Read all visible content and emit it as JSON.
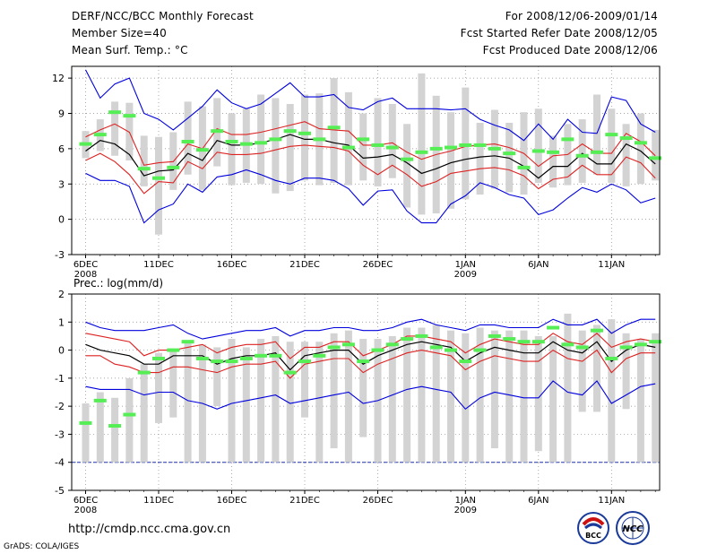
{
  "header": {
    "title": "DERF/NCC/BCC Monthly Forecast",
    "member": "Member Size=40",
    "variable": "Mean Surf. Temp.: °C",
    "period": "For 2008/12/06-2009/01/14",
    "started": "Fcst Started Refer Date 2008/12/05",
    "produced": "Fcst Produced Date 2008/12/06"
  },
  "footer": {
    "url": "http://cmdp.ncc.cma.gov.cn",
    "credit": "GrADS: COLA/IGES",
    "logo1_text": "BCC",
    "logo2_text": "NCC"
  },
  "colors": {
    "box": "#d3d3d3",
    "mark": "#55ee55",
    "mean": "#000000",
    "inner": "#dd2222",
    "outer": "#0000dd",
    "grid": "#888888"
  },
  "chart_data": [
    {
      "type": "box-ensemble",
      "title": "Mean Surf. Temp.: °C",
      "ylim": [
        -3,
        13
      ],
      "yticks": [
        -3,
        0,
        3,
        6,
        9,
        12
      ],
      "xticks": [
        {
          "i": 0,
          "label": "6DEC",
          "sub": "2008"
        },
        {
          "i": 5,
          "label": "11DEC"
        },
        {
          "i": 10,
          "label": "16DEC"
        },
        {
          "i": 15,
          "label": "21DEC"
        },
        {
          "i": 20,
          "label": "26DEC"
        },
        {
          "i": 26,
          "label": "1JAN",
          "sub": "2009"
        },
        {
          "i": 31,
          "label": "6JAN"
        },
        {
          "i": 36,
          "label": "11JAN"
        }
      ],
      "box_low": [
        5.2,
        5.8,
        5.4,
        5.0,
        2.8,
        -1.3,
        2.5,
        3.8,
        2.5,
        4.5,
        2.9,
        3.1,
        3.0,
        2.2,
        2.4,
        3.3,
        2.9,
        3.1,
        2.9,
        3.3,
        2.8,
        3.5,
        1.0,
        0.4,
        0.5,
        0.9,
        1.7,
        2.1,
        2.6,
        2.3,
        2.1,
        3.1,
        2.7,
        2.9,
        3.1,
        3.8,
        3.1,
        2.8,
        3.0,
        3.3
      ],
      "box_high": [
        7.5,
        8.5,
        10.0,
        9.9,
        7.1,
        7.0,
        7.4,
        10.0,
        9.6,
        10.3,
        9.0,
        9.4,
        10.6,
        10.3,
        9.8,
        10.6,
        10.7,
        12.0,
        10.8,
        9.0,
        10.3,
        9.8,
        8.1,
        12.4,
        10.5,
        9.1,
        11.2,
        8.2,
        9.3,
        8.2,
        9.1,
        9.4,
        7.1,
        8.1,
        8.5,
        10.6,
        9.4,
        8.1,
        9.0,
        7.6
      ],
      "green": [
        6.4,
        7.2,
        9.1,
        8.8,
        4.3,
        3.5,
        4.4,
        6.6,
        5.9,
        7.5,
        6.6,
        6.4,
        6.5,
        6.8,
        7.5,
        7.3,
        6.8,
        7.8,
        6.1,
        6.8,
        6.3,
        6.1,
        5.1,
        5.7,
        6.0,
        6.1,
        6.3,
        6.3,
        6.0,
        5.6,
        4.4,
        5.8,
        5.7,
        6.8,
        5.4,
        5.7,
        7.2,
        6.9,
        6.5,
        5.2
      ],
      "mean": [
        5.8,
        6.7,
        6.4,
        5.5,
        3.7,
        4.1,
        4.2,
        5.6,
        5.0,
        6.7,
        6.3,
        6.3,
        6.5,
        6.8,
        7.2,
        6.8,
        6.8,
        6.5,
        6.3,
        5.2,
        5.3,
        5.5,
        4.8,
        3.9,
        4.3,
        4.8,
        5.1,
        5.3,
        5.4,
        5.2,
        4.5,
        3.5,
        4.5,
        4.5,
        5.6,
        4.7,
        4.7,
        6.4,
        5.8,
        4.7
      ],
      "upper": [
        7.0,
        7.6,
        8.1,
        7.4,
        4.6,
        4.8,
        4.9,
        6.4,
        6.0,
        7.7,
        7.2,
        7.2,
        7.4,
        7.7,
        8.0,
        8.3,
        7.7,
        7.6,
        7.5,
        6.3,
        6.3,
        6.5,
        5.7,
        5.1,
        5.5,
        5.8,
        6.2,
        6.3,
        6.4,
        6.1,
        5.6,
        4.5,
        5.4,
        5.5,
        6.4,
        5.6,
        5.6,
        7.3,
        6.6,
        5.4
      ],
      "lower": [
        5.0,
        5.6,
        4.9,
        3.8,
        2.2,
        3.2,
        3.1,
        4.9,
        4.3,
        5.7,
        5.5,
        5.5,
        5.6,
        5.9,
        6.2,
        6.3,
        6.2,
        6.1,
        5.8,
        4.6,
        3.8,
        4.6,
        3.8,
        2.8,
        3.2,
        3.9,
        4.1,
        4.3,
        4.4,
        4.2,
        3.7,
        2.6,
        3.4,
        3.6,
        4.6,
        3.8,
        3.8,
        5.3,
        4.8,
        3.5
      ],
      "max": [
        12.7,
        10.3,
        11.5,
        12.0,
        9.0,
        8.5,
        7.6,
        8.6,
        9.6,
        11.0,
        9.9,
        9.4,
        9.8,
        10.7,
        11.6,
        10.4,
        10.4,
        10.6,
        9.5,
        9.3,
        10.0,
        10.3,
        9.4,
        9.4,
        9.4,
        9.3,
        9.4,
        8.5,
        8.0,
        7.6,
        6.7,
        8.1,
        6.8,
        8.5,
        7.4,
        7.3,
        10.4,
        10.1,
        8.1,
        7.4
      ],
      "min": [
        3.9,
        3.3,
        3.3,
        2.8,
        -0.3,
        0.8,
        1.3,
        3.0,
        2.3,
        3.6,
        3.8,
        4.2,
        3.8,
        3.3,
        3.0,
        3.5,
        3.5,
        3.3,
        2.6,
        1.2,
        2.4,
        2.5,
        0.7,
        -0.3,
        -0.3,
        1.3,
        2.0,
        3.1,
        2.7,
        2.1,
        1.8,
        0.4,
        0.8,
        1.8,
        2.7,
        2.3,
        3.0,
        2.5,
        1.4,
        1.8
      ]
    },
    {
      "type": "box-ensemble",
      "title": "Prec.: log(mm/d)",
      "ylim": [
        -5,
        2
      ],
      "yticks": [
        -5,
        -4,
        -3,
        -2,
        -1,
        0,
        1,
        2
      ],
      "xticks": [
        {
          "i": 0,
          "label": "6DEC",
          "sub": "2008"
        },
        {
          "i": 5,
          "label": "11DEC"
        },
        {
          "i": 10,
          "label": "16DEC"
        },
        {
          "i": 15,
          "label": "21DEC"
        },
        {
          "i": 20,
          "label": "26DEC"
        },
        {
          "i": 26,
          "label": "1JAN",
          "sub": "2009"
        },
        {
          "i": 31,
          "label": "6JAN"
        },
        {
          "i": 36,
          "label": "11JAN"
        }
      ],
      "floor": -4,
      "box_low": [
        -4,
        -4,
        -4,
        -4,
        -4,
        -2.6,
        -2.4,
        -4,
        -4,
        -2.0,
        -4,
        -4,
        -4,
        -4,
        -4,
        -2.4,
        -4,
        -3.5,
        -4,
        -3.1,
        -4,
        -4,
        -4,
        -4,
        -4,
        -4,
        -4,
        -4,
        -3.5,
        -4,
        -4,
        -3.6,
        -4,
        -4,
        -2.2,
        -2.2,
        -4,
        -2.1,
        -4,
        -4
      ],
      "box_high": [
        -1.9,
        -1.5,
        -1.7,
        -1.0,
        -0.5,
        -0.1,
        0.0,
        0.3,
        0.2,
        0.1,
        0.4,
        0.1,
        0.4,
        0.5,
        0.3,
        0.3,
        0.3,
        0.6,
        0.7,
        0.4,
        0.4,
        0.5,
        0.8,
        0.8,
        0.9,
        0.7,
        0.6,
        0.8,
        0.7,
        0.7,
        0.7,
        0.5,
        0.5,
        1.3,
        0.7,
        0.9,
        1.1,
        0.6,
        0.4,
        0.6
      ],
      "green": [
        -2.6,
        -1.8,
        -2.7,
        -2.3,
        -0.8,
        -0.3,
        0.0,
        0.3,
        -0.3,
        -0.4,
        -0.4,
        -0.3,
        -0.2,
        -0.2,
        -0.8,
        -0.4,
        -0.2,
        0.1,
        0.2,
        -0.4,
        0.0,
        0.2,
        0.4,
        0.5,
        0.1,
        0.0,
        -0.4,
        0.0,
        0.5,
        0.4,
        0.3,
        0.3,
        0.8,
        0.2,
        0.1,
        0.7,
        -0.3,
        0.1,
        0.2,
        0.3
      ],
      "mean": [
        0.2,
        0.0,
        -0.1,
        -0.2,
        -0.5,
        -0.5,
        -0.2,
        -0.2,
        -0.2,
        -0.5,
        -0.3,
        -0.2,
        -0.2,
        -0.1,
        -0.7,
        -0.2,
        -0.1,
        0.0,
        0.0,
        -0.5,
        -0.2,
        0.0,
        0.2,
        0.3,
        0.2,
        0.1,
        -0.4,
        -0.1,
        0.1,
        0.0,
        -0.1,
        -0.1,
        0.3,
        0.0,
        -0.1,
        0.3,
        -0.4,
        0.0,
        0.2,
        0.1
      ],
      "upper": [
        0.6,
        0.5,
        0.4,
        0.3,
        -0.2,
        0.0,
        0.0,
        0.1,
        0.2,
        -0.1,
        0.1,
        0.2,
        0.2,
        0.3,
        -0.3,
        0.1,
        0.1,
        0.3,
        0.3,
        -0.2,
        0.0,
        0.2,
        0.5,
        0.5,
        0.4,
        0.3,
        -0.1,
        0.2,
        0.4,
        0.3,
        0.2,
        0.2,
        0.6,
        0.3,
        0.2,
        0.6,
        0.1,
        0.3,
        0.4,
        0.3
      ],
      "lower": [
        -0.2,
        -0.2,
        -0.5,
        -0.6,
        -0.8,
        -0.8,
        -0.6,
        -0.6,
        -0.7,
        -0.8,
        -0.6,
        -0.5,
        -0.5,
        -0.4,
        -1.0,
        -0.5,
        -0.4,
        -0.3,
        -0.3,
        -0.8,
        -0.5,
        -0.3,
        -0.1,
        0.0,
        -0.1,
        -0.2,
        -0.7,
        -0.4,
        -0.2,
        -0.3,
        -0.4,
        -0.4,
        0.0,
        -0.3,
        -0.4,
        0.0,
        -0.8,
        -0.3,
        -0.1,
        -0.1
      ],
      "max": [
        1.0,
        0.8,
        0.7,
        0.7,
        0.7,
        0.8,
        0.9,
        0.6,
        0.4,
        0.5,
        0.6,
        0.7,
        0.7,
        0.8,
        0.5,
        0.7,
        0.7,
        0.8,
        0.8,
        0.7,
        0.7,
        0.8,
        1.0,
        1.1,
        0.9,
        0.8,
        0.7,
        0.9,
        0.9,
        0.8,
        0.8,
        0.8,
        1.1,
        0.9,
        0.9,
        1.1,
        0.6,
        0.9,
        1.1,
        1.1
      ],
      "min": [
        -1.3,
        -1.4,
        -1.4,
        -1.4,
        -1.6,
        -1.5,
        -1.5,
        -1.8,
        -1.9,
        -2.1,
        -1.9,
        -1.8,
        -1.7,
        -1.6,
        -1.9,
        -1.8,
        -1.7,
        -1.6,
        -1.5,
        -1.9,
        -1.8,
        -1.6,
        -1.4,
        -1.3,
        -1.4,
        -1.5,
        -2.1,
        -1.7,
        -1.5,
        -1.6,
        -1.7,
        -1.7,
        -1.1,
        -1.5,
        -1.6,
        -1.1,
        -1.9,
        -1.6,
        -1.3,
        -1.2
      ]
    }
  ]
}
